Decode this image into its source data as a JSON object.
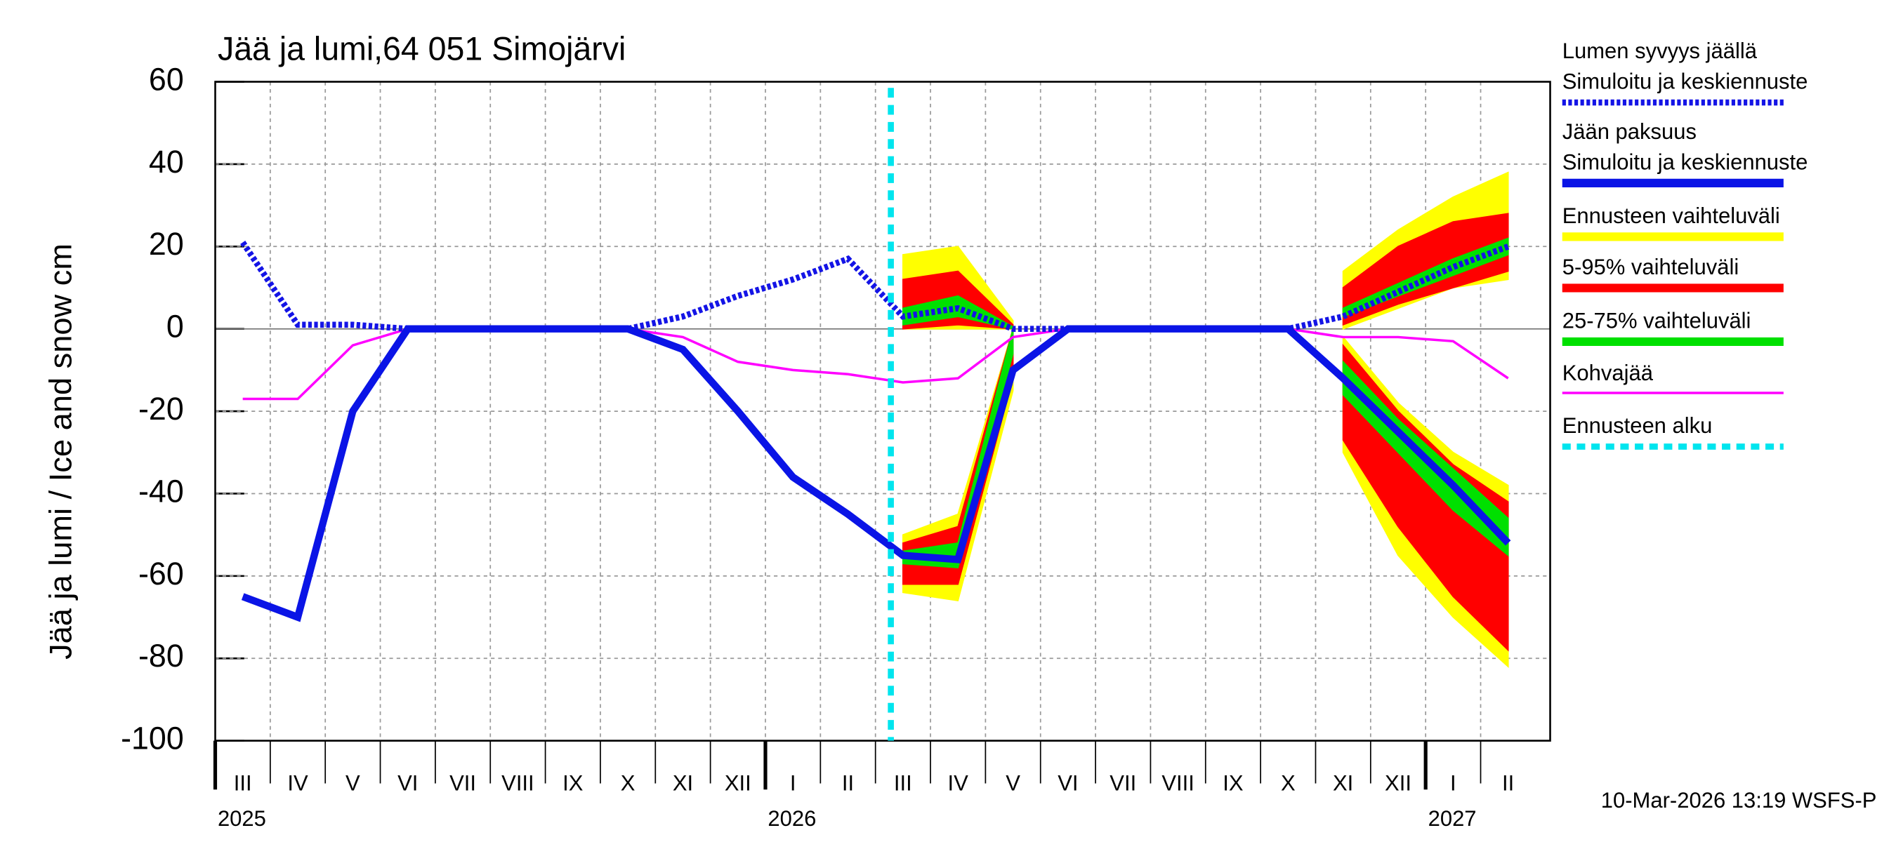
{
  "chart_data": {
    "type": "line",
    "title": "Jää ja lumi,64 051 Simojärvi",
    "y_label": "Jää ja lumi / Ice and snow    cm",
    "footer": "10-Mar-2026 13:19 WSFS-P",
    "categories": [
      "III",
      "IV",
      "V",
      "VI",
      "VII",
      "VIII",
      "IX",
      "X",
      "XI",
      "XII",
      "I",
      "II",
      "III",
      "IV",
      "V",
      "VI",
      "VII",
      "VIII",
      "IX",
      "X",
      "XI",
      "XII",
      "I",
      "II"
    ],
    "year_labels": [
      "2025",
      null,
      null,
      null,
      null,
      null,
      null,
      null,
      null,
      null,
      "2026",
      null,
      null,
      null,
      null,
      null,
      null,
      null,
      null,
      null,
      null,
      null,
      "2027",
      null
    ],
    "ylim": [
      -100,
      60
    ],
    "yticks": [
      -100,
      -80,
      -60,
      -40,
      -20,
      0,
      20,
      40,
      60
    ],
    "grid": true,
    "series": [
      {
        "name": "Lumen syvyys jäällä",
        "note": "Simuloitu ja keskiennuste",
        "color": "#1414e6",
        "style": "dotted",
        "values": [
          21,
          1,
          1,
          0,
          0,
          0,
          0,
          0,
          3,
          8,
          12,
          17,
          3,
          5,
          0,
          0,
          0,
          0,
          0,
          0,
          3,
          9,
          15,
          20
        ]
      },
      {
        "name": "Jään paksuus",
        "note": "Simuloitu ja keskiennuste",
        "color": "#0a14e6",
        "style": "solid",
        "values": [
          -65,
          -70,
          -20,
          0,
          0,
          0,
          0,
          0,
          -5,
          -20,
          -36,
          -45,
          -55,
          -56,
          -10,
          0,
          0,
          0,
          0,
          0,
          -12,
          -25,
          -38,
          -52
        ]
      },
      {
        "name": "Kohvajää",
        "color": "#ff00ff",
        "style": "thin",
        "values": [
          -17,
          -17,
          -4,
          0,
          0,
          0,
          0,
          0,
          -2,
          -8,
          -10,
          -11,
          -13,
          -12,
          -2,
          0,
          0,
          0,
          0,
          0,
          -2,
          -2,
          -3,
          -12
        ]
      }
    ],
    "bands": [
      {
        "name": "Ennusteen vaihteluväli",
        "color": "#ffff00",
        "snow_low": [
          null,
          null,
          null,
          null,
          null,
          null,
          null,
          null,
          null,
          null,
          null,
          null,
          0,
          0,
          0,
          null,
          null,
          null,
          null,
          null,
          0,
          5,
          10,
          12
        ],
        "snow_high": [
          null,
          null,
          null,
          null,
          null,
          null,
          null,
          null,
          null,
          null,
          null,
          null,
          18,
          20,
          2,
          null,
          null,
          null,
          null,
          null,
          14,
          24,
          32,
          38
        ],
        "ice_low": [
          null,
          null,
          null,
          null,
          null,
          null,
          null,
          null,
          null,
          null,
          null,
          null,
          -64,
          -66,
          -15,
          null,
          null,
          null,
          null,
          null,
          -30,
          -55,
          -70,
          -82
        ],
        "ice_high": [
          null,
          null,
          null,
          null,
          null,
          null,
          null,
          null,
          null,
          null,
          null,
          null,
          -50,
          -45,
          0,
          null,
          null,
          null,
          null,
          null,
          -2,
          -18,
          -30,
          -38
        ]
      },
      {
        "name": "5-95% vaihteluväli",
        "color": "#ff0000",
        "snow_low": [
          null,
          null,
          null,
          null,
          null,
          null,
          null,
          null,
          null,
          null,
          null,
          null,
          0,
          1,
          0,
          null,
          null,
          null,
          null,
          null,
          1,
          6,
          10,
          14
        ],
        "snow_high": [
          null,
          null,
          null,
          null,
          null,
          null,
          null,
          null,
          null,
          null,
          null,
          null,
          12,
          14,
          1,
          null,
          null,
          null,
          null,
          null,
          10,
          20,
          26,
          28
        ],
        "ice_low": [
          null,
          null,
          null,
          null,
          null,
          null,
          null,
          null,
          null,
          null,
          null,
          null,
          -62,
          -62,
          -12,
          null,
          null,
          null,
          null,
          null,
          -27,
          -48,
          -65,
          -78
        ],
        "ice_high": [
          null,
          null,
          null,
          null,
          null,
          null,
          null,
          null,
          null,
          null,
          null,
          null,
          -52,
          -48,
          0,
          null,
          null,
          null,
          null,
          null,
          -4,
          -20,
          -33,
          -42
        ]
      },
      {
        "name": "25-75% vaihteluväli",
        "color": "#00e000",
        "snow_low": [
          null,
          null,
          null,
          null,
          null,
          null,
          null,
          null,
          null,
          null,
          null,
          null,
          1,
          3,
          0,
          null,
          null,
          null,
          null,
          null,
          3,
          8,
          13,
          18
        ],
        "snow_high": [
          null,
          null,
          null,
          null,
          null,
          null,
          null,
          null,
          null,
          null,
          null,
          null,
          5,
          8,
          0.5,
          null,
          null,
          null,
          null,
          null,
          5,
          11,
          17,
          22
        ],
        "ice_low": [
          null,
          null,
          null,
          null,
          null,
          null,
          null,
          null,
          null,
          null,
          null,
          null,
          -57,
          -58,
          -6,
          null,
          null,
          null,
          null,
          null,
          -16,
          -30,
          -44,
          -55
        ],
        "ice_high": [
          null,
          null,
          null,
          null,
          null,
          null,
          null,
          null,
          null,
          null,
          null,
          null,
          -54,
          -52,
          0,
          null,
          null,
          null,
          null,
          null,
          -8,
          -22,
          -34,
          -46
        ]
      }
    ],
    "forecast_start": {
      "name": "Ennusteen alku",
      "color": "#00e5ee",
      "position": 12.28
    }
  }
}
